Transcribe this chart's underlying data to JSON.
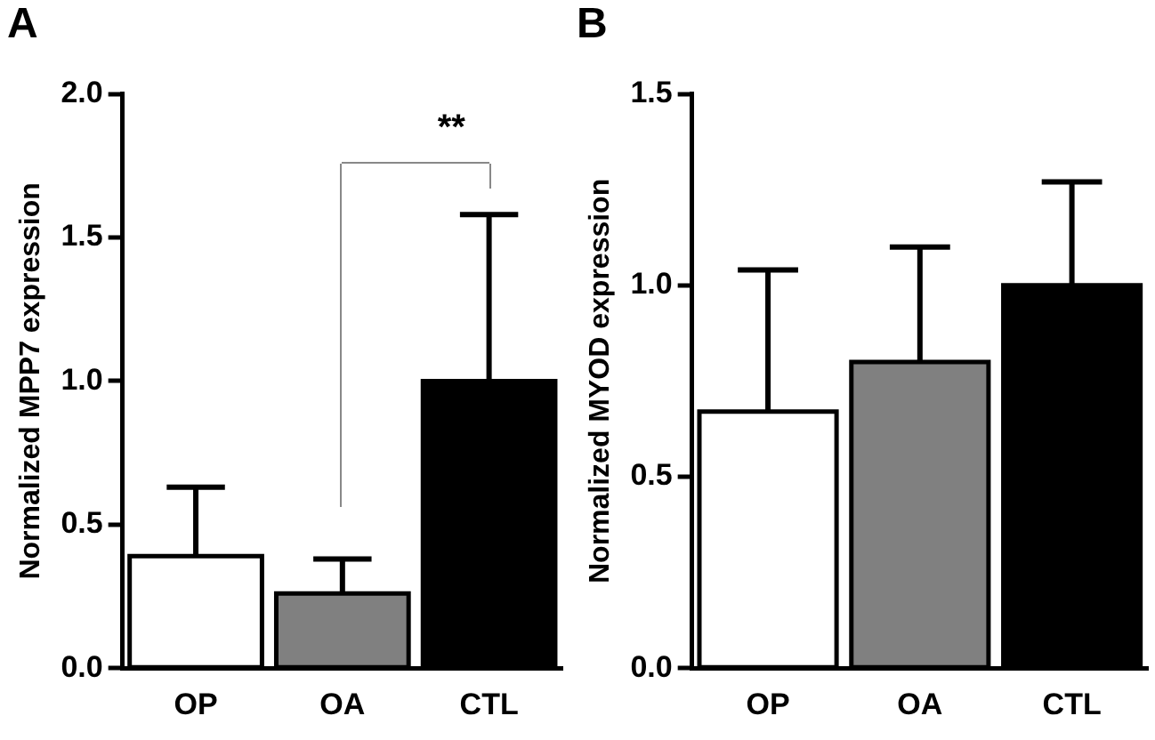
{
  "chart_data": [
    {
      "type": "bar",
      "title": "A",
      "ylabel": "Normalized MPP7 expression",
      "categories": [
        "OP",
        "OA",
        "CTL"
      ],
      "values": [
        0.39,
        0.26,
        1.0
      ],
      "colors": [
        "#ffffff",
        "#808080",
        "#000000"
      ],
      "errors": [
        [
          0.39,
          0.63
        ],
        [
          0.26,
          0.38
        ],
        [
          1.0,
          1.58
        ]
      ],
      "ylim": [
        0,
        2.0
      ],
      "yticks": [
        {
          "value": 0,
          "label": "0.0"
        },
        {
          "value": 0.5,
          "label": "0.5"
        },
        {
          "value": 1,
          "label": "1.0"
        },
        {
          "value": 1.5,
          "label": "1.5"
        },
        {
          "value": 2,
          "label": "2.0"
        }
      ],
      "grid": false,
      "annotations": [
        "**"
      ]
    },
    {
      "type": "bar",
      "title": "B",
      "ylabel": "Normalized MYOD expression",
      "categories": [
        "OP",
        "OA",
        "CTL"
      ],
      "values": [
        0.67,
        0.8,
        1.0
      ],
      "colors": [
        "#ffffff",
        "#808080",
        "#000000"
      ],
      "errors": [
        [
          0.67,
          1.04
        ],
        [
          0.8,
          1.1
        ],
        [
          1.0,
          1.27
        ]
      ],
      "ylim": [
        0,
        1.5
      ],
      "yticks": [
        {
          "value": 0,
          "label": "0.0"
        },
        {
          "value": 0.5,
          "label": "0.5"
        },
        {
          "value": 1,
          "label": "1.0"
        },
        {
          "value": 1.5,
          "label": "1.5"
        }
      ],
      "grid": false
    }
  ]
}
